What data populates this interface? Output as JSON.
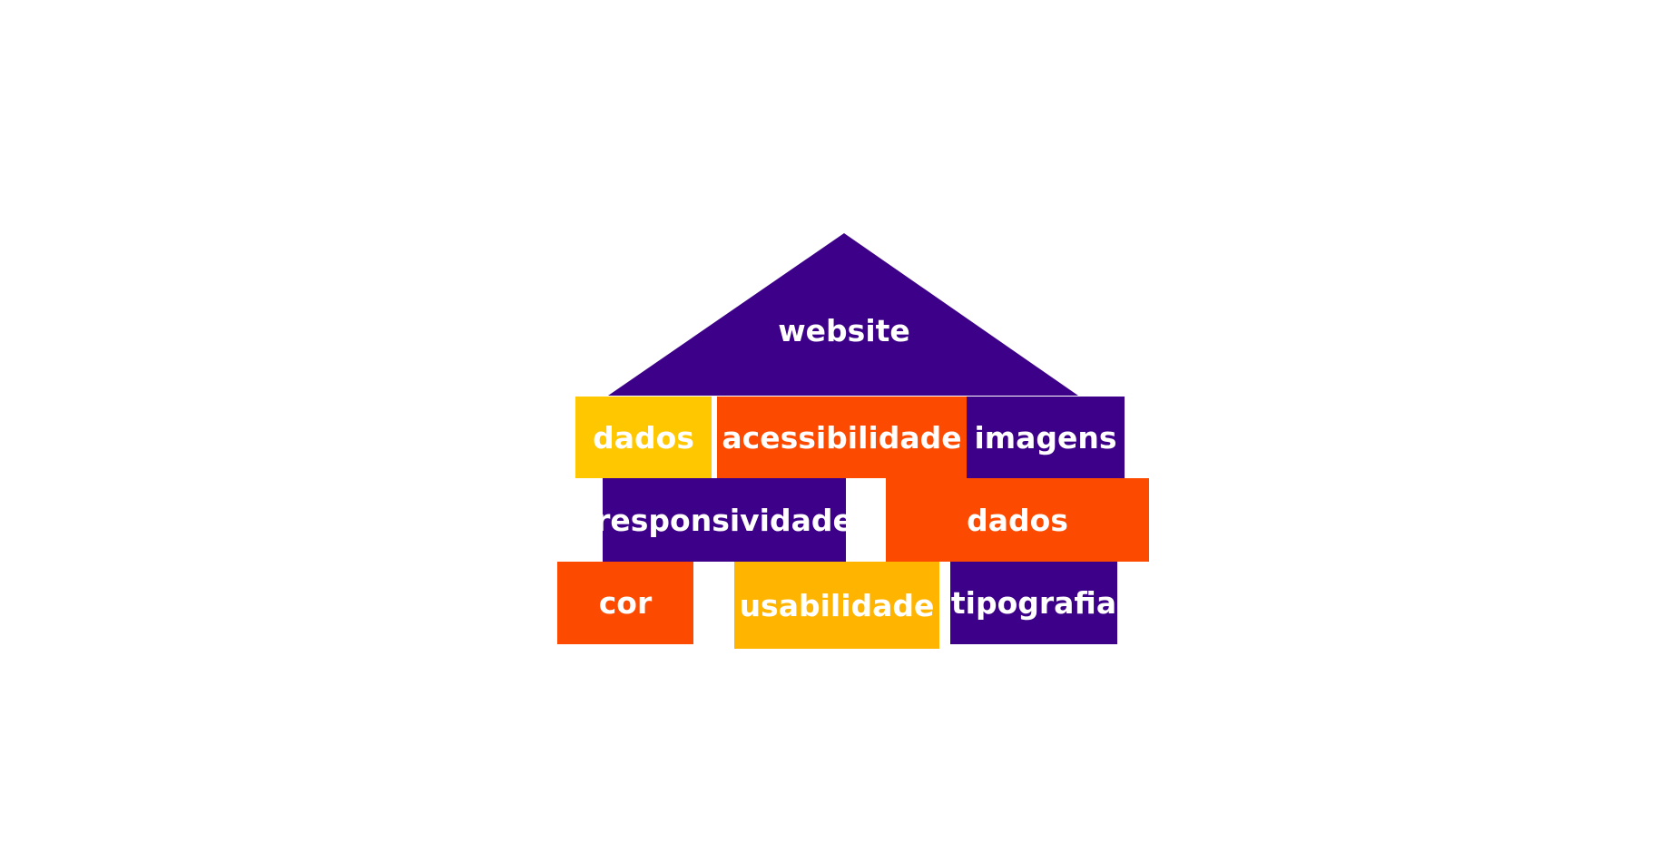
{
  "colors": {
    "purple": "#3d0088",
    "orange": "#fc4a00",
    "yellow": "#fec700",
    "amber": "#ffb400",
    "text": "#ffffff"
  },
  "roof": {
    "label": "website"
  },
  "blocks": [
    {
      "label": "dados",
      "color": "yellow"
    },
    {
      "label": "acessibilidade",
      "color": "orange"
    },
    {
      "label": "imagens",
      "color": "purple"
    },
    {
      "label": "responsividade",
      "color": "purple"
    },
    {
      "label": "dados",
      "color": "orange"
    },
    {
      "label": "cor",
      "color": "orange"
    },
    {
      "label": "usabilidade",
      "color": "amber"
    },
    {
      "label": "tipografia",
      "color": "purple"
    }
  ]
}
